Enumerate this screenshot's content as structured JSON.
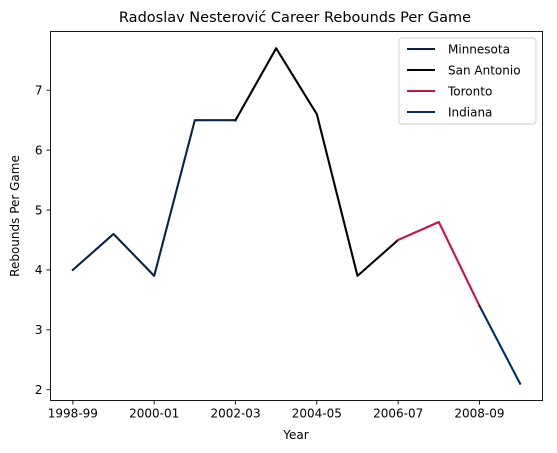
{
  "chart_data": {
    "type": "line",
    "title": "Radoslav Nesterović Career Rebounds Per Game",
    "xlabel": "Year",
    "ylabel": "Rebounds Per Game",
    "x_tick_labels": [
      "1998-99",
      "2000-01",
      "2002-03",
      "2004-05",
      "2006-07",
      "2008-09"
    ],
    "y_ticks": [
      2,
      3,
      4,
      5,
      6,
      7
    ],
    "ylim": [
      1.82,
      7.98
    ],
    "grid": false,
    "legend_placement": "top-right",
    "seasons": [
      "1998-99",
      "1999-00",
      "2000-01",
      "2001-02",
      "2002-03",
      "2003-04",
      "2004-05",
      "2005-06",
      "2006-07",
      "2007-08",
      "2008-09",
      "2009-10"
    ],
    "series": [
      {
        "name": "Minnesota",
        "color": "#0c2340",
        "x": [
          "1998-99",
          "1999-00",
          "2000-01",
          "2001-02",
          "2002-03"
        ],
        "values": [
          4.0,
          4.6,
          3.9,
          6.5,
          6.5
        ]
      },
      {
        "name": "San Antonio",
        "color": "#000000",
        "x": [
          "2002-03",
          "2003-04",
          "2004-05",
          "2005-06",
          "2006-07"
        ],
        "values": [
          6.5,
          7.7,
          6.6,
          3.9,
          4.5
        ]
      },
      {
        "name": "Toronto",
        "color": "#ce1141",
        "x": [
          "2006-07",
          "2007-08",
          "2008-09"
        ],
        "values": [
          4.5,
          4.8,
          3.4
        ]
      },
      {
        "name": "Indiana",
        "color": "#002d62",
        "x": [
          "2008-09",
          "2009-10"
        ],
        "values": [
          3.4,
          2.1
        ]
      }
    ]
  }
}
